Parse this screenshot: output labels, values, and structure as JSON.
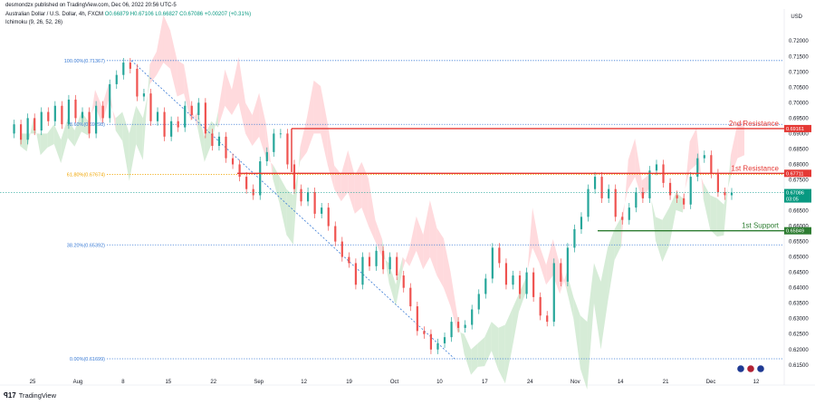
{
  "header": {
    "attribution": "desmondzx published on TradingView.com, Dec 06, 2022 20:56 UTC-5",
    "symbol_title": "Australian Dollar / U.S. Dollar, 4h, FXCM",
    "ohlc": "O0.66879 H0.67106 L0.66827 C0.67086 +0.00207 (+0.31%)",
    "indicator": "Ichimoku (9, 26, 52, 26)",
    "currency": "USD"
  },
  "footer": {
    "logo_text": "TradingView"
  },
  "colors": {
    "up": "#26a69a",
    "down": "#ef5350",
    "resistance": "#e53935",
    "support": "#2e7d32",
    "fib": "#3a7bd5",
    "fib_golden": "#f0a500",
    "cloud_bull": "#c8e6c9",
    "cloud_bear": "#ffcdd2"
  },
  "chart_data": {
    "type": "candlestick",
    "title": "Australian Dollar / U.S. Dollar, 4h, FXCM",
    "ylim": [
      0.612,
      0.728
    ],
    "y_ticks": [
      "0.72000",
      "0.71500",
      "0.71000",
      "0.70500",
      "0.70000",
      "0.69500",
      "0.69000",
      "0.68500",
      "0.68000",
      "0.67500",
      "0.67000",
      "0.66500",
      "0.66000",
      "0.65500",
      "0.65000",
      "0.64500",
      "0.64000",
      "0.63500",
      "0.63000",
      "0.62500",
      "0.62000",
      "0.61500"
    ],
    "x_ticks": [
      "25",
      "Aug",
      "8",
      "15",
      "22",
      "Sep",
      "12",
      "19",
      "Oct",
      "10",
      "17",
      "24",
      "Nov",
      "14",
      "21",
      "Dec",
      "12"
    ],
    "fib_levels": [
      {
        "label": "100.00%(0.71367)",
        "value": 0.71367
      },
      {
        "label": "78.60%(0.69298)",
        "value": 0.69298
      },
      {
        "label": "61.80%(0.67674)",
        "value": 0.67674
      },
      {
        "label": "38.20%(0.65392)",
        "value": 0.65392
      },
      {
        "label": "0.00%(0.61699)",
        "value": 0.61699
      }
    ],
    "levels": [
      {
        "name": "2nd Resistance",
        "value": 0.69161,
        "tag": "0.69161"
      },
      {
        "name": "1st Resistance",
        "value": 0.67711,
        "tag": "0.67711"
      },
      {
        "name": "1st Support",
        "value": 0.65849,
        "tag": "0.65849"
      }
    ],
    "current_price": {
      "value": 0.67086,
      "tag": "0.67086",
      "countdown": "03:05"
    },
    "price_path": [
      0.69,
      0.693,
      0.688,
      0.695,
      0.691,
      0.697,
      0.694,
      0.699,
      0.693,
      0.701,
      0.695,
      0.697,
      0.69,
      0.699,
      0.695,
      0.706,
      0.709,
      0.713,
      0.711,
      0.702,
      0.703,
      0.694,
      0.697,
      0.689,
      0.694,
      0.692,
      0.699,
      0.696,
      0.7,
      0.69,
      0.686,
      0.689,
      0.682,
      0.68,
      0.676,
      0.672,
      0.67,
      0.681,
      0.684,
      0.69,
      0.69,
      0.68,
      0.672,
      0.668,
      0.671,
      0.664,
      0.666,
      0.66,
      0.655,
      0.65,
      0.648,
      0.641,
      0.65,
      0.647,
      0.652,
      0.646,
      0.65,
      0.644,
      0.64,
      0.634,
      0.626,
      0.625,
      0.62,
      0.622,
      0.624,
      0.629,
      0.627,
      0.628,
      0.633,
      0.638,
      0.643,
      0.653,
      0.648,
      0.641,
      0.644,
      0.638,
      0.645,
      0.637,
      0.631,
      0.629,
      0.648,
      0.642,
      0.653,
      0.659,
      0.663,
      0.672,
      0.676,
      0.669,
      0.672,
      0.663,
      0.662,
      0.666,
      0.671,
      0.669,
      0.678,
      0.68,
      0.674,
      0.67,
      0.669,
      0.667,
      0.676,
      0.682,
      0.683,
      0.677,
      0.671,
      0.67,
      0.67086
    ]
  }
}
